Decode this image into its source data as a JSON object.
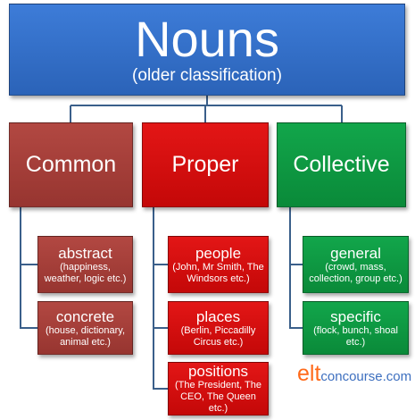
{
  "root": {
    "title": "Nouns",
    "subtitle": "(older classification)"
  },
  "categories": [
    {
      "label": "Common",
      "items": [
        {
          "title": "abstract",
          "desc": "(happiness, weather, logic etc.)"
        },
        {
          "title": "concrete",
          "desc": "(house, dictionary, animal etc.)"
        }
      ]
    },
    {
      "label": "Proper",
      "items": [
        {
          "title": "people",
          "desc": "(John, Mr Smith, The Windsors etc.)"
        },
        {
          "title": "places",
          "desc": "(Berlin, Piccadilly Circus etc.)"
        },
        {
          "title": "positions",
          "desc": "(The President, The CEO, The Queen etc.)"
        }
      ]
    },
    {
      "label": "Collective",
      "items": [
        {
          "title": "general",
          "desc": "(crowd, mass, collection, group etc.)"
        },
        {
          "title": "specific",
          "desc": "(flock, bunch, shoal etc.)"
        }
      ]
    }
  ],
  "brand": {
    "part1": "elt",
    "part2": "concourse.com"
  },
  "colors": {
    "root": "#2e6cc7",
    "common": "#a63e39",
    "proper": "#d80f0f",
    "collective": "#0f9a44",
    "connector": "#3a5f8a"
  }
}
